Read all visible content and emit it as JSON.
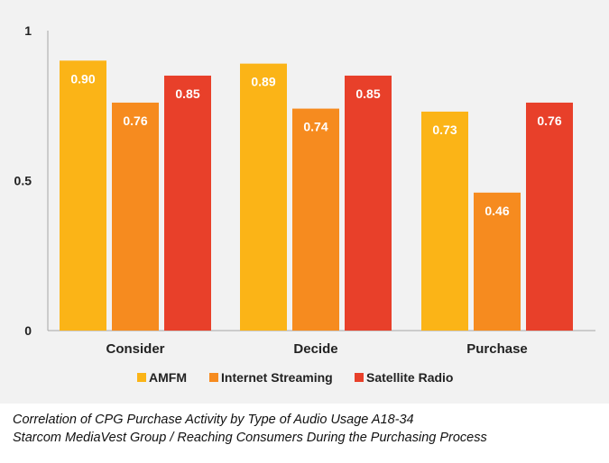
{
  "chart_data": {
    "type": "bar",
    "categories": [
      "Consider",
      "Decide",
      "Purchase"
    ],
    "series": [
      {
        "name": "AMFM",
        "values": [
          0.9,
          0.89,
          0.73
        ],
        "labels": [
          "0.90",
          "0.89",
          "0.73"
        ],
        "color": "#fbb417"
      },
      {
        "name": "Internet Streaming",
        "values": [
          0.76,
          0.74,
          0.46
        ],
        "labels": [
          "0.76",
          "0.74",
          "0.46"
        ],
        "color": "#f68b1f"
      },
      {
        "name": "Satellite Radio",
        "values": [
          0.85,
          0.85,
          0.76
        ],
        "labels": [
          "0.85",
          "0.85",
          "0.76"
        ],
        "color": "#e8402a"
      }
    ],
    "yticks": [
      {
        "value": 0,
        "label": "0"
      },
      {
        "value": 0.5,
        "label": "0.5"
      },
      {
        "value": 1,
        "label": "1"
      }
    ],
    "ylim": [
      0,
      1
    ],
    "legend_position": "bottom",
    "grid": false,
    "axis_color": "#a6a6a6"
  },
  "caption": {
    "line1": "Correlation of CPG Purchase Activity by Type of Audio Usage A18-34",
    "line2": "Starcom MediaVest Group / Reaching Consumers During the Purchasing Process"
  }
}
